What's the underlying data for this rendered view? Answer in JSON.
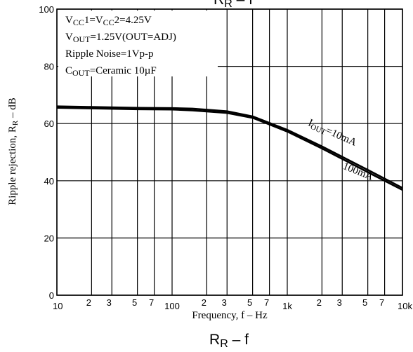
{
  "chart_data": {
    "type": "line",
    "title": "R",
    "title_sub": "R",
    "title_suffix": " – f",
    "top_title_fragment": "R",
    "top_title_fragment_sub": "R",
    "top_title_fragment_suffix": " – f",
    "xlabel": "Frequency, f – Hz",
    "ylabel_main": "Ripple rejection, R",
    "ylabel_sub": "R",
    "ylabel_suffix": " – dB",
    "x_scale": "log",
    "xlim": [
      10,
      10000
    ],
    "ylim": [
      0,
      100
    ],
    "grid": true,
    "x_major_ticks": [
      {
        "value": 10,
        "label": "10"
      },
      {
        "value": 100,
        "label": "100"
      },
      {
        "value": 1000,
        "label": "1k"
      },
      {
        "value": 10000,
        "label": "10k"
      }
    ],
    "x_minor_ticks": [
      {
        "value": 20,
        "label": "2"
      },
      {
        "value": 30,
        "label": "3"
      },
      {
        "value": 50,
        "label": "5"
      },
      {
        "value": 70,
        "label": "7"
      },
      {
        "value": 200,
        "label": "2"
      },
      {
        "value": 300,
        "label": "3"
      },
      {
        "value": 500,
        "label": "5"
      },
      {
        "value": 700,
        "label": "7"
      },
      {
        "value": 2000,
        "label": "2"
      },
      {
        "value": 3000,
        "label": "3"
      },
      {
        "value": 5000,
        "label": "5"
      },
      {
        "value": 7000,
        "label": "7"
      }
    ],
    "y_ticks": [
      {
        "value": 0,
        "label": "0"
      },
      {
        "value": 20,
        "label": "20"
      },
      {
        "value": 40,
        "label": "40"
      },
      {
        "value": 60,
        "label": "60"
      },
      {
        "value": 80,
        "label": "80"
      },
      {
        "value": 100,
        "label": "100"
      }
    ],
    "series": [
      {
        "label": "I",
        "label_sub": "OUT",
        "label_suffix": "=10mA",
        "x": [
          10,
          20,
          50,
          100,
          150,
          300,
          500,
          1000,
          2000,
          5000,
          10000
        ],
        "y": [
          66.0,
          65.8,
          65.5,
          65.4,
          65.2,
          64.3,
          62.5,
          57.8,
          52.0,
          43.8,
          37.5
        ]
      },
      {
        "label": "100mA",
        "x": [
          10,
          20,
          50,
          100,
          150,
          300,
          500,
          1000,
          2000,
          5000,
          10000
        ],
        "y": [
          65.5,
          65.3,
          65.0,
          64.9,
          64.6,
          63.7,
          62.0,
          57.2,
          51.3,
          43.0,
          36.8
        ]
      }
    ],
    "conditions": [
      {
        "parts": [
          [
            "V",
            ""
          ],
          [
            "CC",
            "sub"
          ],
          [
            "1=V",
            ""
          ],
          [
            "CC",
            "sub"
          ],
          [
            "2=4.25V",
            ""
          ]
        ]
      },
      {
        "parts": [
          [
            "V",
            ""
          ],
          [
            "OUT",
            "sub"
          ],
          [
            "=1.25V(OUT=ADJ)",
            ""
          ]
        ]
      },
      {
        "parts": [
          [
            "Ripple Noise=1Vp-p",
            ""
          ]
        ]
      },
      {
        "parts": [
          [
            "C",
            ""
          ],
          [
            "OUT",
            "sub"
          ],
          [
            "=Ceramic 10µF",
            ""
          ]
        ]
      }
    ]
  }
}
